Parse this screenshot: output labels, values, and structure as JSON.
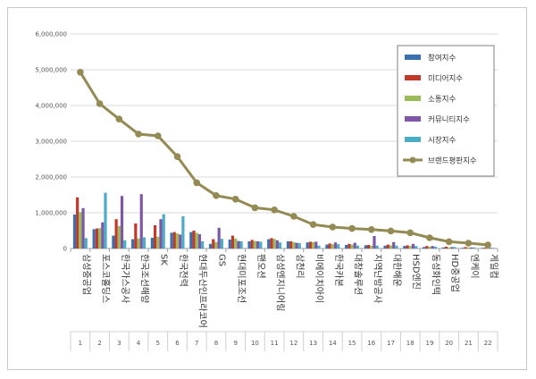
{
  "chart_data": {
    "type": "bar",
    "title": "",
    "xlabel": "",
    "ylabel": "",
    "ylim": [
      0,
      6000000
    ],
    "yticks": [
      "0",
      "1,000,000",
      "2,000,000",
      "3,000,000",
      "4,000,000",
      "5,000,000",
      "6,000,000"
    ],
    "grid": true,
    "legend_position": "top-right",
    "ranks": [
      "1",
      "2",
      "3",
      "4",
      "5",
      "6",
      "7",
      "8",
      "9",
      "10",
      "11",
      "12",
      "13",
      "14",
      "15",
      "16",
      "17",
      "18",
      "19",
      "20",
      "21",
      "22"
    ],
    "categories": [
      "삼성중공업",
      "포스코홀딩스",
      "한국가스공사",
      "한국조선해양",
      "SK",
      "한국전력",
      "현대두산인프라코어",
      "GS",
      "현대미포조선",
      "팬오션",
      "삼성엔지니어링",
      "삼천리",
      "비에이치아이",
      "한국카본",
      "대창솔루션",
      "지역난방공사",
      "대한해운",
      "HSD엔진",
      "동성화인텍",
      "HD중공업",
      "엔케이",
      "게일컴"
    ],
    "series": [
      {
        "name": "참여지수",
        "color": "#3a6fb0",
        "kind": "bar",
        "values": [
          950000,
          540000,
          360000,
          260000,
          300000,
          440000,
          460000,
          130000,
          250000,
          200000,
          260000,
          200000,
          170000,
          110000,
          100000,
          90000,
          80000,
          70000,
          40000,
          30000,
          20000,
          15000
        ]
      },
      {
        "name": "미디어지수",
        "color": "#c0392b",
        "kind": "bar",
        "values": [
          1430000,
          560000,
          820000,
          700000,
          650000,
          460000,
          500000,
          260000,
          360000,
          240000,
          290000,
          200000,
          190000,
          140000,
          130000,
          100000,
          110000,
          90000,
          70000,
          50000,
          40000,
          25000
        ]
      },
      {
        "name": "소통지수",
        "color": "#9bbb59",
        "kind": "bar",
        "values": [
          1020000,
          570000,
          630000,
          280000,
          330000,
          420000,
          440000,
          180000,
          280000,
          210000,
          270000,
          180000,
          180000,
          120000,
          110000,
          80000,
          90000,
          70000,
          50000,
          30000,
          30000,
          15000
        ]
      },
      {
        "name": "커뮤니티지수",
        "color": "#7e57a8",
        "kind": "bar",
        "values": [
          1130000,
          730000,
          1470000,
          1520000,
          820000,
          390000,
          400000,
          580000,
          210000,
          200000,
          230000,
          160000,
          190000,
          170000,
          160000,
          350000,
          180000,
          130000,
          70000,
          40000,
          30000,
          20000
        ]
      },
      {
        "name": "시장지수",
        "color": "#4bacc6",
        "kind": "bar",
        "values": [
          290000,
          1560000,
          230000,
          310000,
          960000,
          900000,
          200000,
          270000,
          200000,
          190000,
          170000,
          150000,
          80000,
          120000,
          80000,
          80000,
          80000,
          70000,
          50000,
          40000,
          30000,
          15000
        ]
      },
      {
        "name": "브랜드평판지수",
        "color": "#948a54",
        "kind": "line",
        "values": [
          4930000,
          4050000,
          3620000,
          3200000,
          3150000,
          2570000,
          1840000,
          1480000,
          1380000,
          1140000,
          1080000,
          900000,
          670000,
          600000,
          560000,
          530000,
          490000,
          440000,
          300000,
          190000,
          150000,
          100000
        ]
      }
    ]
  }
}
